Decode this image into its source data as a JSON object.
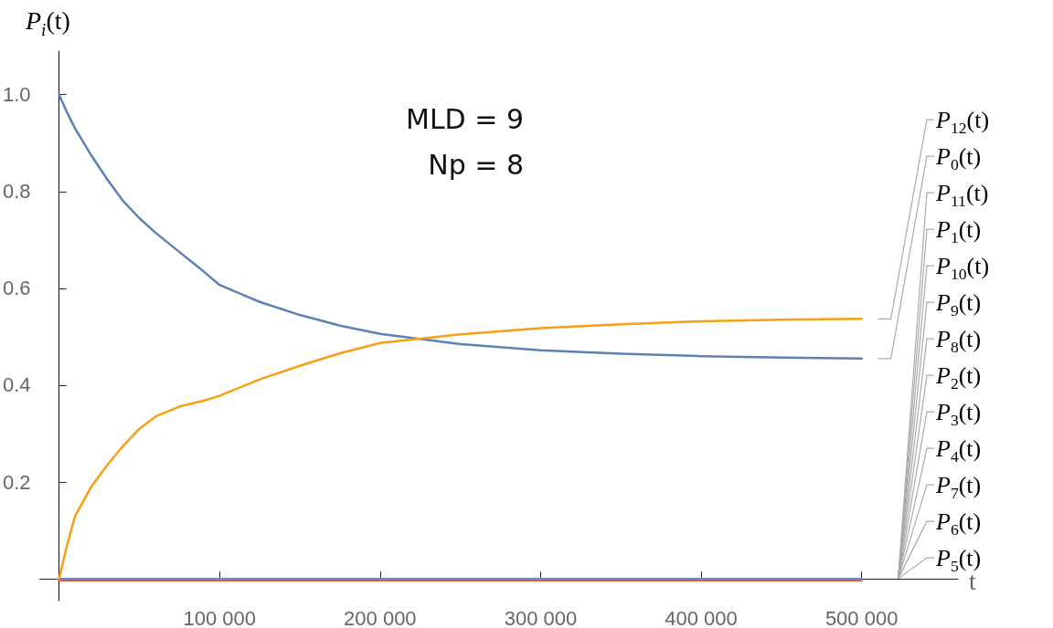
{
  "chart_data": {
    "type": "line",
    "xlabel": "t",
    "ylabel": "P$_{i}$(t)",
    "annotations": [
      "MLD = 9",
      "Np = 8"
    ],
    "xlim": [
      -12000,
      560000
    ],
    "ylim": [
      -0.045,
      1.09
    ],
    "xticks": [
      {
        "value": 100000,
        "label": "100 000"
      },
      {
        "value": 200000,
        "label": "200 000"
      },
      {
        "value": 300000,
        "label": "300 000"
      },
      {
        "value": 400000,
        "label": "400 000"
      },
      {
        "value": 500000,
        "label": "500 000"
      }
    ],
    "yticks": [
      0.2,
      0.4,
      0.6,
      0.8,
      {
        "value": 1,
        "label": "1.0"
      }
    ],
    "grid": false,
    "marker": "none",
    "line_style": "solid",
    "series": [
      {
        "name": "P$_{12}$(t)",
        "color": "#f89f13",
        "x": [
          0,
          5000,
          10000,
          20000,
          30000,
          40000,
          50000,
          60000,
          75000,
          90000,
          100000,
          125000,
          150000,
          175000,
          200000,
          250000,
          300000,
          350000,
          400000,
          450000,
          500000
        ],
        "values": [
          0,
          0.07,
          0.13,
          0.19,
          0.235,
          0.275,
          0.31,
          0.335,
          0.356,
          0.368,
          0.378,
          0.412,
          0.44,
          0.466,
          0.487,
          0.505,
          0.518,
          0.526,
          0.532,
          0.535,
          0.537
        ]
      },
      {
        "name": "P$_{0}$(t)",
        "color": "#5e81b5",
        "x": [
          0,
          5000,
          10000,
          20000,
          30000,
          40000,
          50000,
          60000,
          75000,
          90000,
          100000,
          125000,
          150000,
          175000,
          200000,
          250000,
          300000,
          350000,
          400000,
          450000,
          500000
        ],
        "values": [
          1,
          0.963,
          0.93,
          0.875,
          0.825,
          0.78,
          0.745,
          0.715,
          0.675,
          0.635,
          0.607,
          0.572,
          0.545,
          0.523,
          0.506,
          0.485,
          0.472,
          0.465,
          0.46,
          0.457,
          0.455
        ]
      },
      {
        "name": "P$_{11}$(t)",
        "color": "#6685d9",
        "x": [
          0,
          500000
        ],
        "values": [
          0,
          0
        ]
      },
      {
        "name": "P$_{1}$(t)"
      },
      {
        "name": "P$_{10}$(t)",
        "color": "#e95536",
        "x": [
          0,
          500000
        ],
        "values": [
          -0.003,
          -0.003
        ]
      },
      {
        "name": "P$_{9}$(t)"
      },
      {
        "name": "P$_{8}$(t)"
      },
      {
        "name": "P$_{2}$(t)"
      },
      {
        "name": "P$_{3}$(t)"
      },
      {
        "name": "P$_{4}$(t)"
      },
      {
        "name": "P$_{7}$(t)"
      },
      {
        "name": "P$_{6}$(t)"
      },
      {
        "name": "P$_{5}$(t)"
      }
    ]
  }
}
